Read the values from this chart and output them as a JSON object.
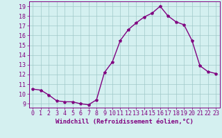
{
  "x": [
    0,
    1,
    2,
    3,
    4,
    5,
    6,
    7,
    8,
    9,
    10,
    11,
    12,
    13,
    14,
    15,
    16,
    17,
    18,
    19,
    20,
    21,
    22,
    23
  ],
  "y": [
    10.5,
    10.4,
    9.9,
    9.3,
    9.2,
    9.2,
    9.0,
    8.9,
    9.4,
    12.2,
    13.3,
    15.5,
    16.6,
    17.3,
    17.9,
    18.3,
    19.0,
    18.0,
    17.4,
    17.1,
    15.5,
    12.9,
    12.3,
    12.1
  ],
  "line_color": "#800080",
  "marker": "*",
  "marker_size": 3,
  "xlabel": "Windchill (Refroidissement éolien,°C)",
  "ylabel_ticks": [
    9,
    10,
    11,
    12,
    13,
    14,
    15,
    16,
    17,
    18,
    19
  ],
  "xlim": [
    -0.5,
    23.5
  ],
  "ylim": [
    8.6,
    19.5
  ],
  "background_color": "#d4f0f0",
  "grid_color": "#a0c8c8",
  "xlabel_color": "#800080",
  "tick_color": "#800080",
  "line_width": 1.0,
  "font_size_ticks": 6,
  "font_size_xlabel": 6.5
}
